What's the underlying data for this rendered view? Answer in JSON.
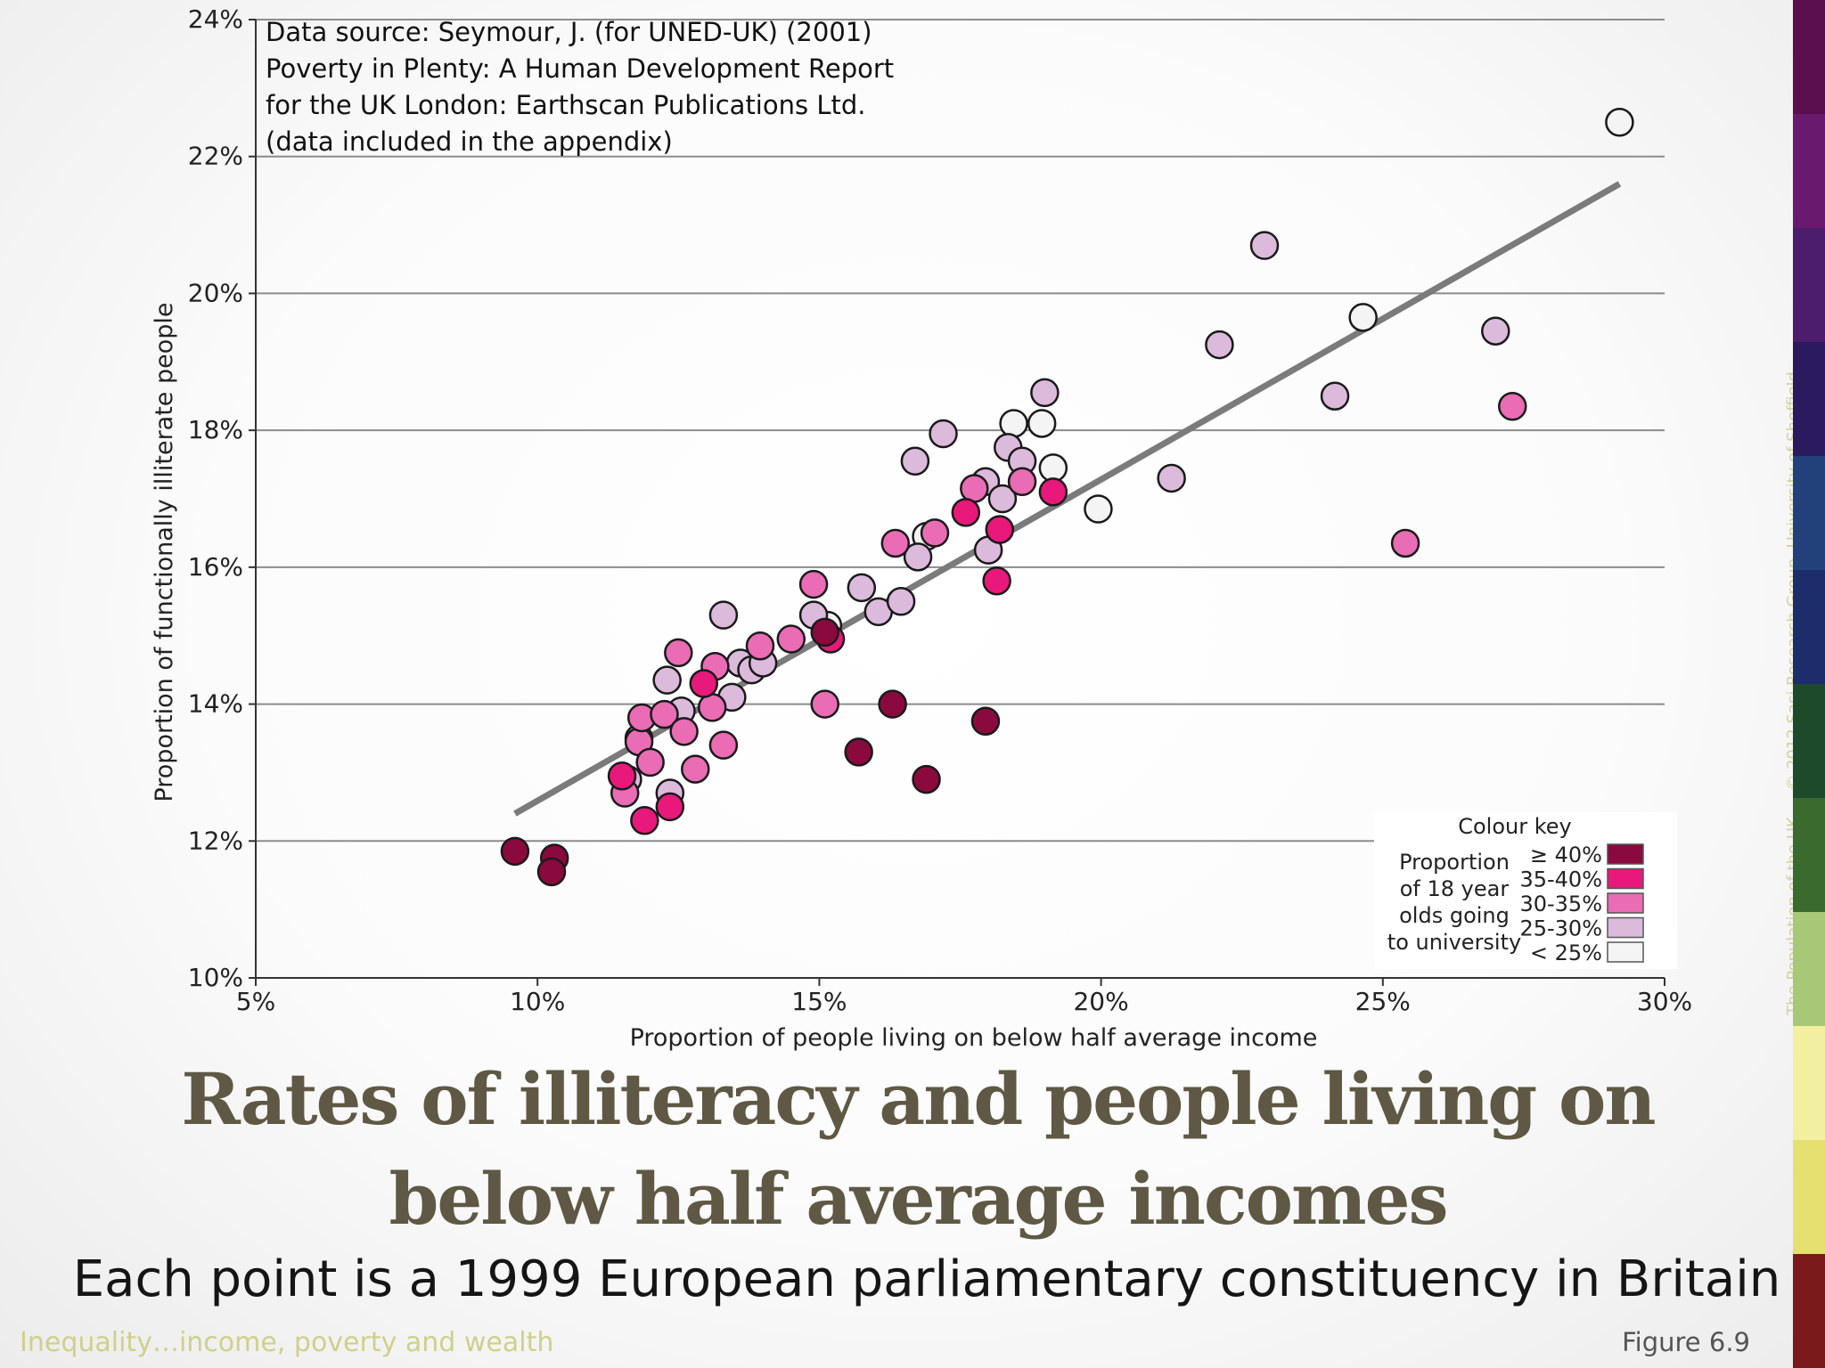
{
  "chart_data": {
    "type": "scatter",
    "xlabel": "Proportion of people living on below half average income",
    "ylabel": "Proportion of functionally illiterate people",
    "xlim": [
      5,
      30
    ],
    "ylim": [
      10,
      24
    ],
    "xticks": [
      "5%",
      "10%",
      "15%",
      "20%",
      "25%",
      "30%"
    ],
    "yticks": [
      "10%",
      "12%",
      "14%",
      "16%",
      "18%",
      "20%",
      "22%",
      "24%"
    ],
    "grid": "horizontal",
    "source_note": [
      "Data source: Seymour, J. (for UNED-UK) (2001)",
      "Poverty in Plenty: A Human Development Report",
      "for the UK London: Earthscan Publications Ltd.",
      "(data included in the appendix)"
    ],
    "trend_line": {
      "x": [
        9.6,
        29.2
      ],
      "y": [
        12.4,
        21.6
      ]
    },
    "legend": {
      "title": "Colour key",
      "description": [
        "Proportion",
        "of 18 year",
        "olds going",
        "to university"
      ],
      "placement": "bottom-right",
      "categories": [
        {
          "label": "≥ 40%",
          "color": "#8a0a3e"
        },
        {
          "label": "35-40%",
          "color": "#e8197a"
        },
        {
          "label": "30-35%",
          "color": "#e96cb4"
        },
        {
          "label": "25-30%",
          "color": "#dcbadb"
        },
        {
          "label": "< 25%",
          "color": "#f4f4f4"
        }
      ]
    },
    "points": [
      {
        "x": 9.6,
        "y": 11.85,
        "c": 0
      },
      {
        "x": 10.3,
        "y": 11.75,
        "c": 0
      },
      {
        "x": 10.25,
        "y": 11.55,
        "c": 0
      },
      {
        "x": 15.7,
        "y": 13.3,
        "c": 0
      },
      {
        "x": 16.3,
        "y": 14.0,
        "c": 0
      },
      {
        "x": 16.9,
        "y": 12.9,
        "c": 0
      },
      {
        "x": 17.95,
        "y": 13.75,
        "c": 0
      },
      {
        "x": 15.1,
        "y": 15.05,
        "c": 0
      },
      {
        "x": 11.5,
        "y": 12.95,
        "c": 1
      },
      {
        "x": 11.9,
        "y": 12.3,
        "c": 1
      },
      {
        "x": 12.35,
        "y": 12.5,
        "c": 1
      },
      {
        "x": 12.95,
        "y": 14.3,
        "c": 1
      },
      {
        "x": 17.6,
        "y": 16.8,
        "c": 1
      },
      {
        "x": 18.2,
        "y": 16.55,
        "c": 1
      },
      {
        "x": 18.15,
        "y": 15.8,
        "c": 1
      },
      {
        "x": 19.15,
        "y": 17.1,
        "c": 1
      },
      {
        "x": 15.2,
        "y": 14.95,
        "c": 1
      },
      {
        "x": 11.55,
        "y": 12.7,
        "c": 2
      },
      {
        "x": 11.8,
        "y": 13.45,
        "c": 2
      },
      {
        "x": 11.85,
        "y": 13.8,
        "c": 2
      },
      {
        "x": 12.0,
        "y": 13.15,
        "c": 2
      },
      {
        "x": 12.25,
        "y": 13.85,
        "c": 2
      },
      {
        "x": 12.5,
        "y": 14.75,
        "c": 2
      },
      {
        "x": 12.6,
        "y": 13.6,
        "c": 2
      },
      {
        "x": 12.8,
        "y": 13.05,
        "c": 2
      },
      {
        "x": 13.1,
        "y": 13.95,
        "c": 2
      },
      {
        "x": 13.15,
        "y": 14.55,
        "c": 2
      },
      {
        "x": 13.3,
        "y": 13.4,
        "c": 2
      },
      {
        "x": 13.95,
        "y": 14.85,
        "c": 2
      },
      {
        "x": 14.5,
        "y": 14.95,
        "c": 2
      },
      {
        "x": 14.9,
        "y": 15.75,
        "c": 2
      },
      {
        "x": 15.1,
        "y": 14.0,
        "c": 2
      },
      {
        "x": 16.35,
        "y": 16.35,
        "c": 2
      },
      {
        "x": 17.05,
        "y": 16.5,
        "c": 2
      },
      {
        "x": 17.75,
        "y": 17.15,
        "c": 2
      },
      {
        "x": 18.6,
        "y": 17.25,
        "c": 2
      },
      {
        "x": 25.4,
        "y": 16.35,
        "c": 2
      },
      {
        "x": 27.3,
        "y": 18.35,
        "c": 2
      },
      {
        "x": 11.6,
        "y": 12.9,
        "c": 3
      },
      {
        "x": 11.8,
        "y": 13.5,
        "c": 3
      },
      {
        "x": 12.3,
        "y": 14.35,
        "c": 3
      },
      {
        "x": 12.35,
        "y": 12.7,
        "c": 3
      },
      {
        "x": 12.55,
        "y": 13.9,
        "c": 3
      },
      {
        "x": 13.3,
        "y": 15.3,
        "c": 3
      },
      {
        "x": 13.45,
        "y": 14.1,
        "c": 3
      },
      {
        "x": 13.6,
        "y": 14.6,
        "c": 3
      },
      {
        "x": 13.8,
        "y": 14.5,
        "c": 3
      },
      {
        "x": 14.0,
        "y": 14.6,
        "c": 3
      },
      {
        "x": 14.9,
        "y": 15.3,
        "c": 3
      },
      {
        "x": 15.75,
        "y": 15.7,
        "c": 3
      },
      {
        "x": 16.05,
        "y": 15.35,
        "c": 3
      },
      {
        "x": 16.45,
        "y": 15.5,
        "c": 3
      },
      {
        "x": 16.75,
        "y": 16.15,
        "c": 3
      },
      {
        "x": 16.7,
        "y": 17.55,
        "c": 3
      },
      {
        "x": 17.2,
        "y": 17.95,
        "c": 3
      },
      {
        "x": 18.0,
        "y": 16.25,
        "c": 3
      },
      {
        "x": 17.95,
        "y": 17.25,
        "c": 3
      },
      {
        "x": 18.25,
        "y": 17.0,
        "c": 3
      },
      {
        "x": 18.35,
        "y": 17.75,
        "c": 3
      },
      {
        "x": 18.6,
        "y": 17.55,
        "c": 3
      },
      {
        "x": 19.0,
        "y": 18.55,
        "c": 3
      },
      {
        "x": 21.25,
        "y": 17.3,
        "c": 3
      },
      {
        "x": 22.1,
        "y": 19.25,
        "c": 3
      },
      {
        "x": 22.9,
        "y": 20.7,
        "c": 3
      },
      {
        "x": 24.15,
        "y": 18.5,
        "c": 3
      },
      {
        "x": 27.0,
        "y": 19.45,
        "c": 3
      },
      {
        "x": 15.15,
        "y": 15.15,
        "c": 4
      },
      {
        "x": 16.9,
        "y": 16.45,
        "c": 4
      },
      {
        "x": 18.45,
        "y": 18.1,
        "c": 4
      },
      {
        "x": 18.95,
        "y": 18.1,
        "c": 4
      },
      {
        "x": 19.15,
        "y": 17.45,
        "c": 4
      },
      {
        "x": 19.95,
        "y": 16.85,
        "c": 4
      },
      {
        "x": 24.65,
        "y": 19.65,
        "c": 4
      },
      {
        "x": 29.2,
        "y": 22.5,
        "c": 4
      }
    ]
  },
  "slide": {
    "title": "Rates of illiteracy and people living on below half average incomes",
    "subtitle": "Each point is a 1999 European parliamentary constituency in Britain",
    "footer_left": "Inequality…income, poverty and wealth",
    "footer_right": "Figure 6.9",
    "vertical_credit": "The Population of the UK — © 2012  Sasi Research Group, University of Sheffield",
    "color_bar": [
      "#5b0f4f",
      "#6a1a6e",
      "#4b1d6c",
      "#2b1a5e",
      "#22407a",
      "#1d2d6c",
      "#1e4a2c",
      "#3a6a2e",
      "#a8c878",
      "#f2f0a0",
      "#e6e070",
      "#7a1a1a"
    ]
  }
}
